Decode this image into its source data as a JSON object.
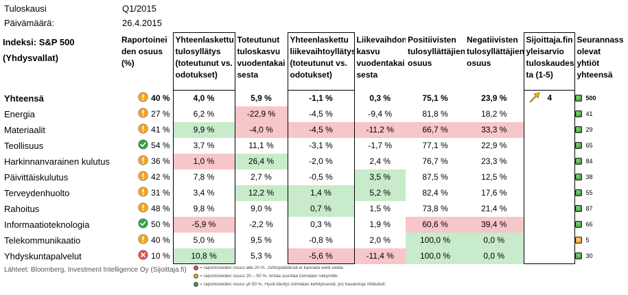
{
  "meta": {
    "period_label": "Tuloskausi",
    "period_value": "Q1/2015",
    "date_label": "Päivämäärä:",
    "date_value": "26.4.2015"
  },
  "header": {
    "index_line1": "Indeksi: S&P 500",
    "index_line2": "(Yhdysvallat)",
    "cols": [
      "Raportoinei den osuus (%)",
      "Yhteenlaskettu tulosyllätys (toteutunut vs. odotukset)",
      "Toteutunut tuloskasvu vuodentakai sesta",
      "Yhteenlaskettu liikevaihtoyllätys (toteutunut vs. odotukset)",
      "Liikevaihdon kasvu vuodentakai sesta",
      "Positiivisten tulosyllättäjien osuus",
      "Negatiivisten tulosyllättäjien osuus",
      "Sijoittaja.fin yleisarvio tuloskaudes ta (1-5)",
      "Seurannassa olevat yhtiöt yhteensä"
    ]
  },
  "rating": {
    "value": "4",
    "icon": "arrow-up-right-icon"
  },
  "colors": {
    "red": "#f7c6c9",
    "green": "#c7ebcb",
    "orange_icon": "#f5a623",
    "green_icon": "#2ea44f",
    "red_icon": "#e05252"
  },
  "rows": [
    {
      "name": "Yhteensä",
      "status": "orange",
      "reported": "40 %",
      "eps_surprise": "4,0 %",
      "eps_growth": "5,9 %",
      "rev_surprise": "-1,1 %",
      "rev_growth": "0,3 %",
      "pos": "75,1 %",
      "neg": "23,9 %",
      "count": "500",
      "dot": "green"
    },
    {
      "name": "Energia",
      "status": "orange",
      "reported": "27 %",
      "eps_surprise": "6,2 %",
      "eps_growth": "-22,9 %",
      "rev_surprise": "-4,5 %",
      "rev_growth": "-9,4 %",
      "pos": "81,8 %",
      "neg": "18,2 %",
      "count": "41",
      "dot": "green"
    },
    {
      "name": "Materiaalit",
      "status": "orange",
      "reported": "41 %",
      "eps_surprise": "9,9 %",
      "eps_growth": "-4,0 %",
      "rev_surprise": "-4,5 %",
      "rev_growth": "-11,2 %",
      "pos": "66,7 %",
      "neg": "33,3 %",
      "count": "29",
      "dot": "green"
    },
    {
      "name": "Teollisuus",
      "status": "green",
      "reported": "54 %",
      "eps_surprise": "3,7 %",
      "eps_growth": "11,1 %",
      "rev_surprise": "-3,1 %",
      "rev_growth": "-1,7 %",
      "pos": "77,1 %",
      "neg": "22,9 %",
      "count": "65",
      "dot": "green"
    },
    {
      "name": "Harkinnanvarainen kulutus",
      "status": "orange",
      "reported": "36 %",
      "eps_surprise": "1,0 %",
      "eps_growth": "26,4 %",
      "rev_surprise": "-2,0 %",
      "rev_growth": "2,4 %",
      "pos": "76,7 %",
      "neg": "23,3 %",
      "count": "84",
      "dot": "green"
    },
    {
      "name": "Päivittäiskulutus",
      "status": "orange",
      "reported": "42 %",
      "eps_surprise": "7,8 %",
      "eps_growth": "2,7 %",
      "rev_surprise": "-0,5 %",
      "rev_growth": "3,5 %",
      "pos": "87,5 %",
      "neg": "12,5 %",
      "count": "38",
      "dot": "green"
    },
    {
      "name": "Terveydenhuolto",
      "status": "orange",
      "reported": "31 %",
      "eps_surprise": "3,4 %",
      "eps_growth": "12,2 %",
      "rev_surprise": "1,4 %",
      "rev_growth": "5,2 %",
      "pos": "82,4 %",
      "neg": "17,6 %",
      "count": "55",
      "dot": "green"
    },
    {
      "name": "Rahoitus",
      "status": "orange",
      "reported": "48 %",
      "eps_surprise": "9,8 %",
      "eps_growth": "9,0 %",
      "rev_surprise": "0,7 %",
      "rev_growth": "1,5 %",
      "pos": "73,8 %",
      "neg": "21,4 %",
      "count": "87",
      "dot": "green"
    },
    {
      "name": "Informaatioteknologia",
      "status": "green",
      "reported": "50 %",
      "eps_surprise": "-5,9 %",
      "eps_growth": "-2,2 %",
      "rev_surprise": "0,3 %",
      "rev_growth": "1,9 %",
      "pos": "60,6 %",
      "neg": "39,4 %",
      "count": "66",
      "dot": "green"
    },
    {
      "name": "Telekommunikaatio",
      "status": "orange",
      "reported": "40 %",
      "eps_surprise": "5,0 %",
      "eps_growth": "9,5 %",
      "rev_surprise": "-0,8 %",
      "rev_growth": "2,0 %",
      "pos": "100,0 %",
      "neg": "0,0 %",
      "count": "5",
      "dot": "orange"
    },
    {
      "name": "Yhdyskuntapalvelut",
      "status": "red",
      "reported": "10 %",
      "eps_surprise": "10,8 %",
      "eps_growth": "5,3 %",
      "rev_surprise": "-5,6 %",
      "rev_growth": "-11,4 %",
      "pos": "100,0 %",
      "neg": "0,0 %",
      "count": "30",
      "dot": "green"
    }
  ],
  "highlights": {
    "Energia": {
      "eps_growth": "red"
    },
    "Materiaalit": {
      "eps_surprise": "green",
      "eps_growth": "red",
      "rev_surprise": "red",
      "rev_growth": "red",
      "pos": "red",
      "neg": "red"
    },
    "Harkinnanvarainen kulutus": {
      "eps_surprise": "red",
      "eps_growth": "green"
    },
    "Päivittäiskulutus": {
      "rev_growth": "green"
    },
    "Terveydenhuolto": {
      "eps_growth": "green",
      "rev_surprise": "green",
      "rev_growth": "green"
    },
    "Rahoitus": {
      "rev_surprise": "green"
    },
    "Informaatioteknologia": {
      "eps_surprise": "red",
      "pos": "red",
      "neg": "red"
    },
    "Telekommunikaatio": {
      "pos": "green",
      "neg": "green"
    },
    "Yhdyskuntapalvelut": {
      "eps_surprise": "green",
      "rev_surprise": "red",
      "rev_growth": "red",
      "pos": "green",
      "neg": "green"
    }
  },
  "footer": {
    "source": "Lähteet: Bloomberg, Investment Intelligence Oy (Sijoittaja.fi)",
    "legend": [
      {
        "color": "red",
        "text": "= raportoneiden osuus alle 20 %. Johtopäätöksiä ei kannata vielä vetää."
      },
      {
        "color": "orange",
        "text": "= raportoneiden osuus 20 – 50 %. Antaa suuntaa toimialan näkymille."
      },
      {
        "color": "green",
        "text": "= raportoneiden osuus yli 50 %. Hyvä käsitys toimialan kehityksestä, jos havaintoja riittävästi."
      }
    ]
  }
}
